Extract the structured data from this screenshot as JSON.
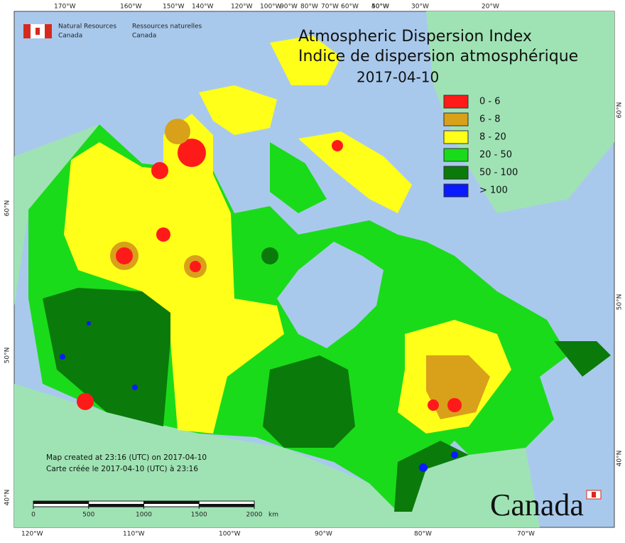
{
  "title": "Atmospheric Dispersion Index",
  "title_fr": "Indice de dispersion atmosphérique",
  "date": "2017-04-10",
  "agency": {
    "en_line1": "Natural Resources",
    "en_line2": "Canada",
    "fr_line1": "Ressources naturelles",
    "fr_line2": "Canada"
  },
  "legend": [
    {
      "label": "0 - 6",
      "color": "#ff1a1a"
    },
    {
      "label": "6 - 8",
      "color": "#d9a01a"
    },
    {
      "label": "8 - 20",
      "color": "#ffff1a"
    },
    {
      "label": "20 - 50",
      "color": "#1adb1a"
    },
    {
      "label": "50 - 100",
      "color": "#0a7a0a"
    },
    {
      "label": "> 100",
      "color": "#0a1aff"
    }
  ],
  "graticule": {
    "top": [
      "170°W",
      "160°W",
      "150°W",
      "140°W",
      "120°W",
      "100°W",
      "90°W",
      "80°W",
      "70°W",
      "60°W",
      "50°W",
      "40°W",
      "30°W",
      "20°W"
    ],
    "bottom": [
      "120°W",
      "110°W",
      "100°W",
      "90°W",
      "80°W",
      "70°W"
    ],
    "left": [
      "60°N",
      "50°N",
      "40°N"
    ],
    "right": [
      "60°N",
      "50°N",
      "40°N"
    ]
  },
  "footer": {
    "line1": "Map created at 23:16 (UTC) on 2017-04-10",
    "line2": "Carte créée le 2017-04-10 (UTC) à 23:16"
  },
  "scale_bar": {
    "ticks": [
      0,
      500,
      1000,
      1500,
      2000
    ],
    "unit": "km"
  },
  "wordmark": "Canada"
}
